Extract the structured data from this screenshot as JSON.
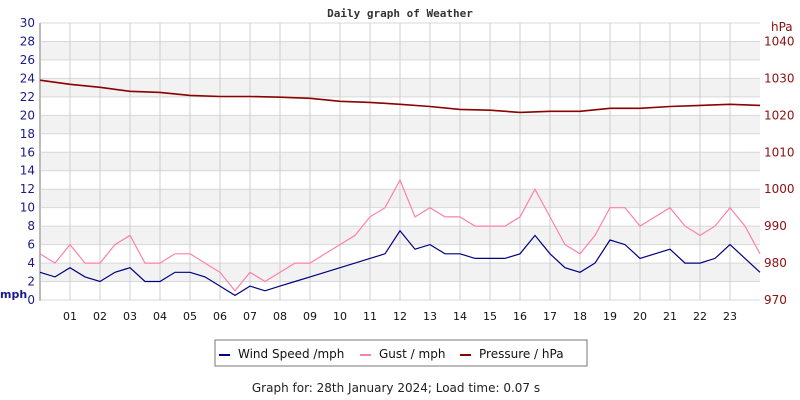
{
  "chart_data": {
    "type": "line",
    "title": "Daily graph of Weather",
    "footer": "Graph for: 28th January 2024; Load time: 0.07 s",
    "left_axis": {
      "label": "mph",
      "range": [
        0,
        30
      ],
      "ticks": [
        0,
        2,
        4,
        6,
        8,
        10,
        12,
        14,
        16,
        18,
        20,
        22,
        24,
        26,
        28,
        30
      ],
      "color": "#1a1a8c"
    },
    "right_axis": {
      "label": "hPa",
      "range": [
        970,
        1045
      ],
      "ticks": [
        970,
        980,
        990,
        1000,
        1010,
        1020,
        1030,
        1040
      ],
      "color": "#8b1010"
    },
    "x_axis": {
      "range": [
        0,
        24
      ],
      "ticks": [
        "01",
        "02",
        "03",
        "04",
        "05",
        "06",
        "07",
        "08",
        "09",
        "10",
        "11",
        "12",
        "13",
        "14",
        "15",
        "16",
        "17",
        "18",
        "19",
        "20",
        "21",
        "22",
        "23"
      ]
    },
    "grid": true,
    "legend_placement": "bottom",
    "series": [
      {
        "name": "Wind Speed /mph",
        "axis": "left",
        "color": "#000080",
        "x": [
          0,
          0.5,
          1,
          1.5,
          2,
          2.5,
          3,
          3.5,
          4,
          4.5,
          5,
          5.5,
          6,
          6.5,
          7,
          7.5,
          8,
          8.5,
          9,
          9.5,
          10,
          10.5,
          11,
          11.5,
          12,
          12.5,
          13,
          13.5,
          14,
          14.5,
          15,
          15.5,
          16,
          16.5,
          17,
          17.5,
          18,
          18.5,
          19,
          19.5,
          20,
          20.5,
          21,
          21.5,
          22,
          22.5,
          23,
          23.5,
          24
        ],
        "values": [
          3,
          2.5,
          3.5,
          2.5,
          2,
          3,
          3.5,
          2,
          2,
          3,
          3,
          2.5,
          1.5,
          0.5,
          1.5,
          1,
          1.5,
          2,
          2.5,
          3,
          3.5,
          4,
          4.5,
          5,
          7.5,
          5.5,
          6,
          5,
          5,
          4.5,
          4.5,
          4.5,
          5,
          7,
          5,
          3.5,
          3,
          4,
          6.5,
          6,
          4.5,
          5,
          5.5,
          4,
          4,
          4.5,
          6,
          4.5,
          3
        ]
      },
      {
        "name": "Gust / mph",
        "axis": "left",
        "color": "#ff80aa",
        "x": [
          0,
          0.5,
          1,
          1.5,
          2,
          2.5,
          3,
          3.5,
          4,
          4.5,
          5,
          5.5,
          6,
          6.5,
          7,
          7.5,
          8,
          8.5,
          9,
          9.5,
          10,
          10.5,
          11,
          11.5,
          12,
          12.5,
          13,
          13.5,
          14,
          14.5,
          15,
          15.5,
          16,
          16.5,
          17,
          17.5,
          18,
          18.5,
          19,
          19.5,
          20,
          20.5,
          21,
          21.5,
          22,
          22.5,
          23,
          23.5,
          24
        ],
        "values": [
          5,
          4,
          6,
          4,
          4,
          6,
          7,
          4,
          4,
          5,
          5,
          4,
          3,
          1,
          3,
          2,
          3,
          4,
          4,
          5,
          6,
          7,
          9,
          10,
          13,
          9,
          10,
          9,
          9,
          8,
          8,
          8,
          9,
          12,
          9,
          6,
          5,
          7,
          10,
          10,
          8,
          9,
          10,
          8,
          7,
          8,
          10,
          8,
          5
        ]
      },
      {
        "name": "Pressure / hPa",
        "axis": "right",
        "color": "#8b0000",
        "x": [
          0,
          1,
          2,
          3,
          4,
          5,
          6,
          7,
          8,
          9,
          10,
          11,
          12,
          13,
          14,
          15,
          16,
          17,
          18,
          19,
          20,
          21,
          22,
          23,
          24
        ],
        "values": [
          1029.5,
          1028.4,
          1027.6,
          1026.5,
          1026.2,
          1025.4,
          1025.1,
          1025.1,
          1024.9,
          1024.6,
          1023.8,
          1023.5,
          1023,
          1022.4,
          1021.6,
          1021.4,
          1020.8,
          1021.1,
          1021.1,
          1021.9,
          1021.9,
          1022.4,
          1022.7,
          1023,
          1022.7
        ]
      }
    ]
  }
}
